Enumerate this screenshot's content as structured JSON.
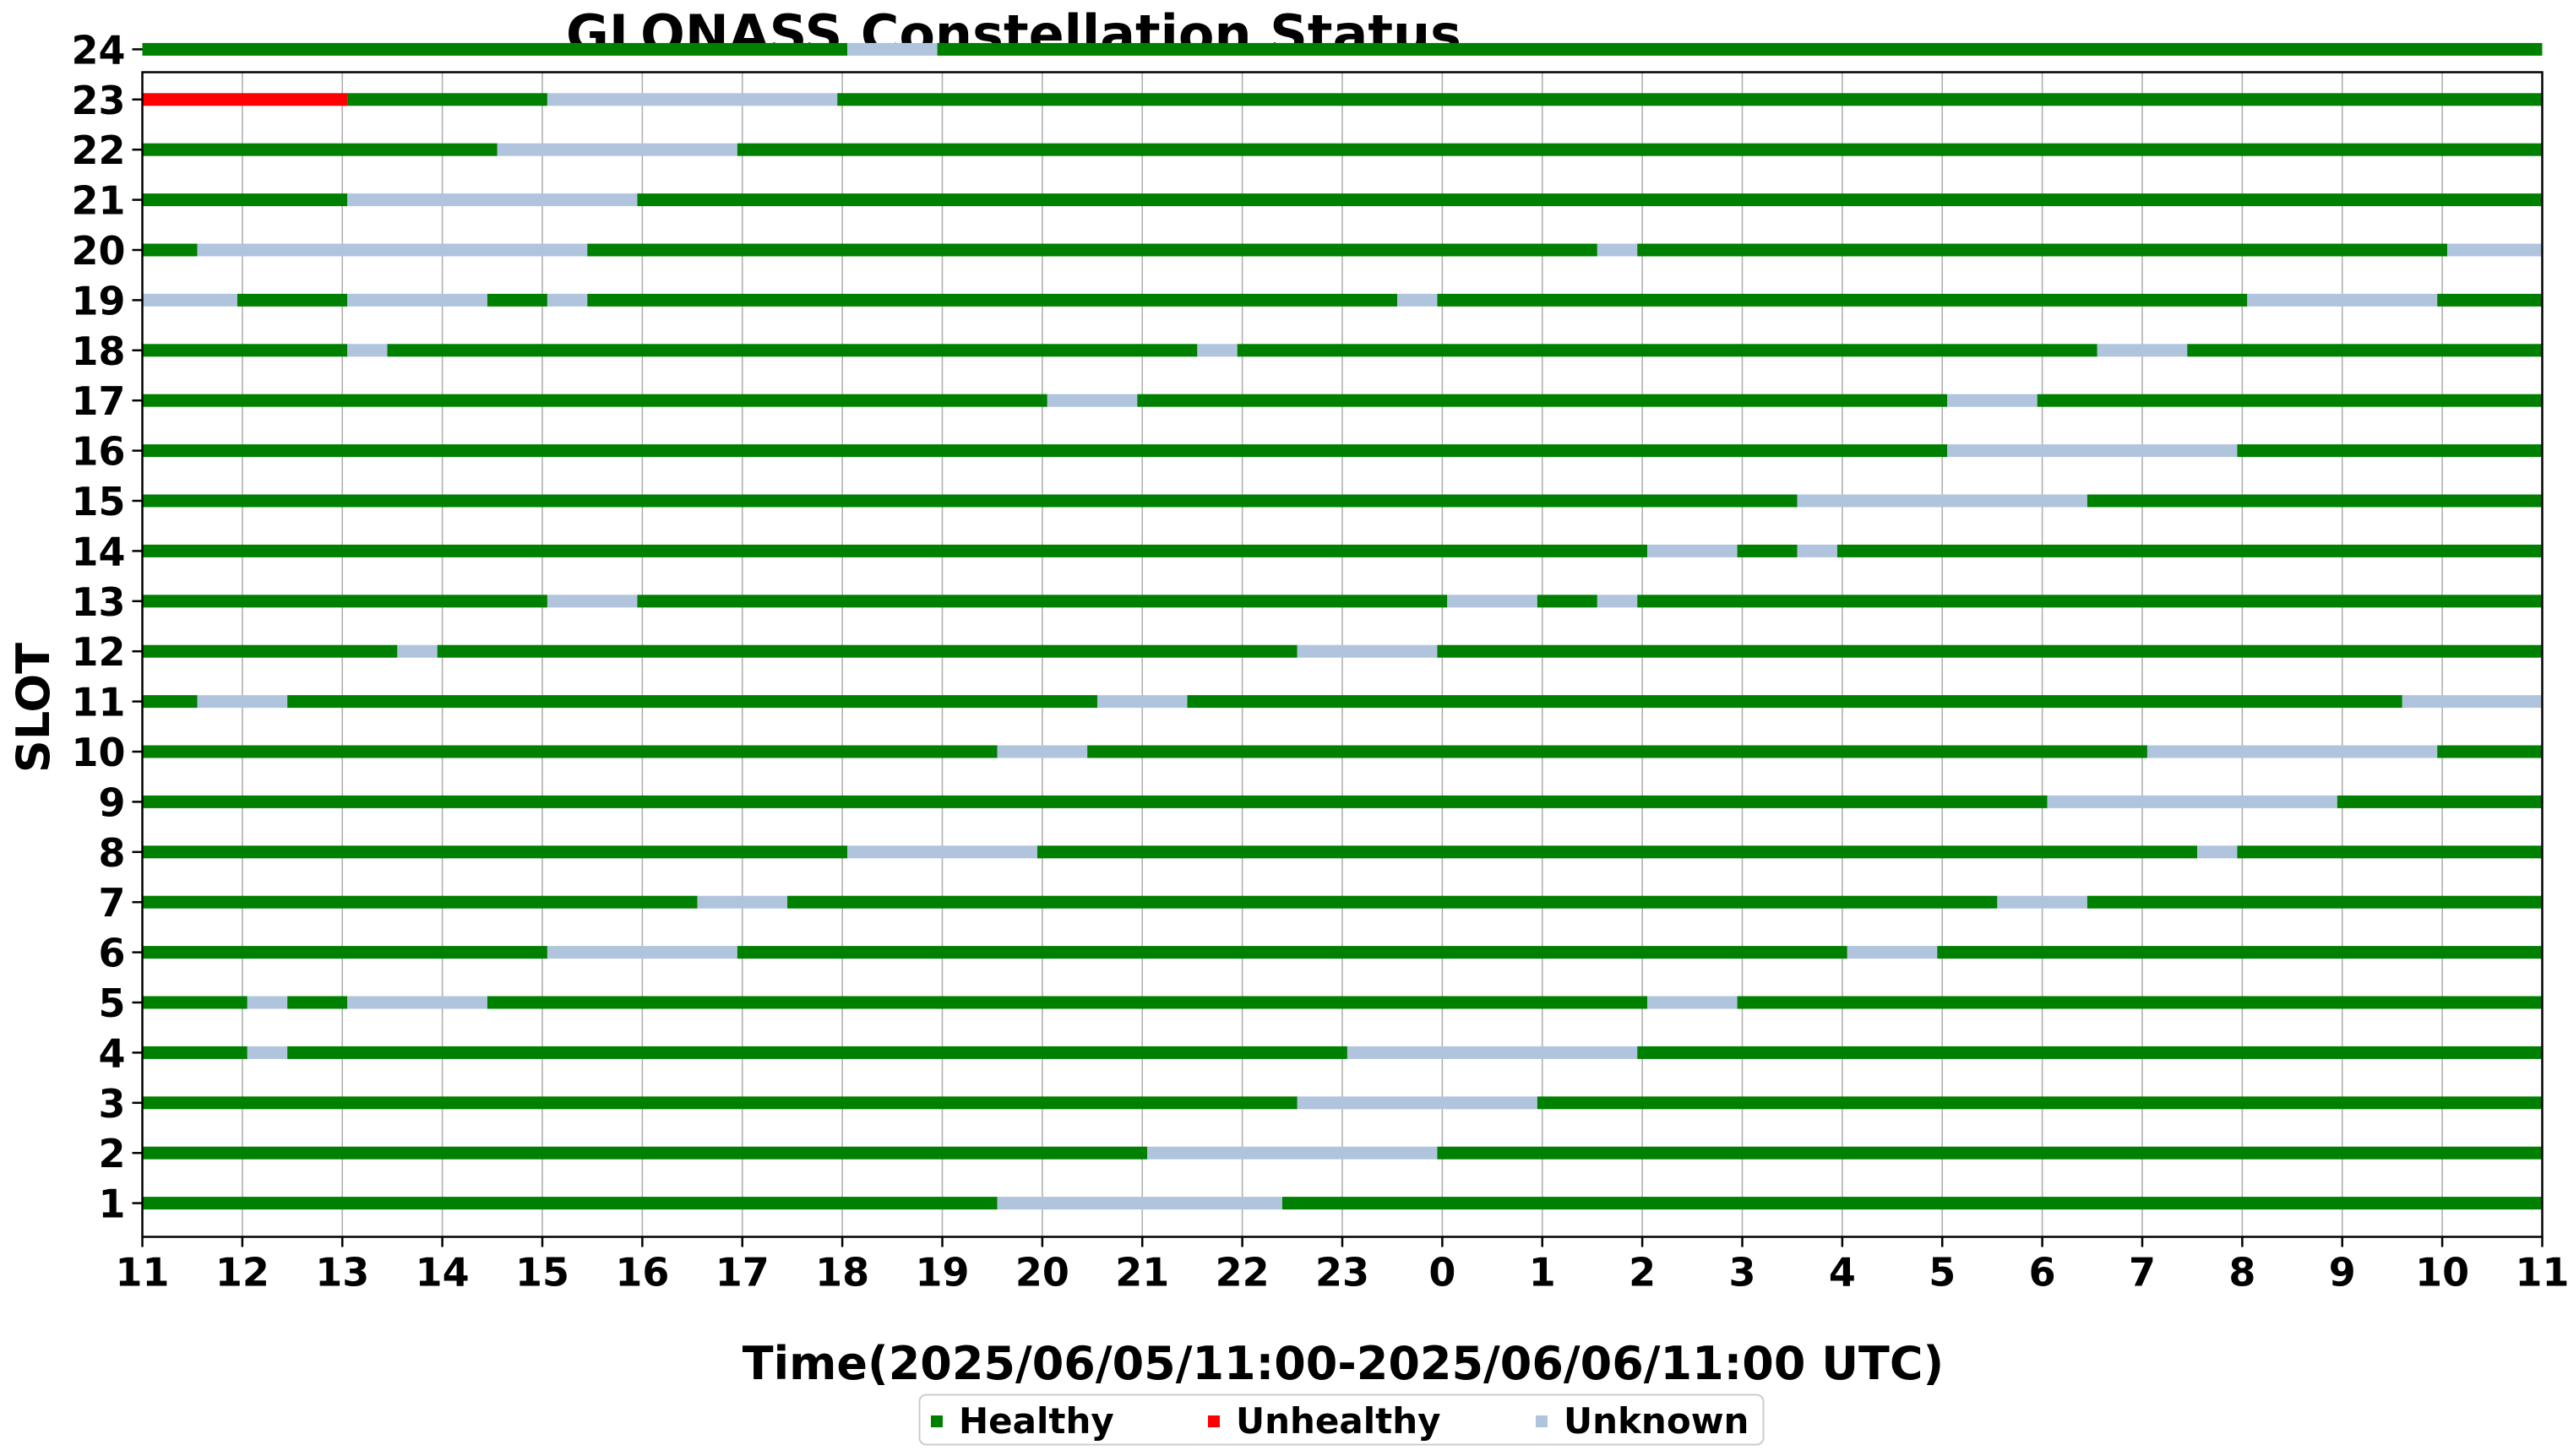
{
  "chart_data": {
    "type": "timeline",
    "title": "GLONASS Constellation Status",
    "xlabel": "Time(2025/06/05/11:00-2025/06/06/11:00 UTC)",
    "ylabel": "SLOT",
    "x_unit": "hours since 2025/06/05 11:00 UTC",
    "xlim": [
      0,
      24
    ],
    "x_ticks": [
      "11",
      "12",
      "13",
      "14",
      "15",
      "16",
      "17",
      "18",
      "19",
      "20",
      "21",
      "22",
      "23",
      "0",
      "1",
      "2",
      "3",
      "4",
      "5",
      "6",
      "7",
      "8",
      "9",
      "10",
      "11"
    ],
    "y_ticks": [
      "1",
      "2",
      "3",
      "4",
      "5",
      "6",
      "7",
      "8",
      "9",
      "10",
      "11",
      "12",
      "13",
      "14",
      "15",
      "16",
      "17",
      "18",
      "19",
      "20",
      "21",
      "22",
      "23",
      "24"
    ],
    "grid": "vertical",
    "legend_position": "bottom-center",
    "legend": [
      {
        "key": "H",
        "label": "Healthy",
        "color": "#008000"
      },
      {
        "key": "X",
        "label": "Unhealthy",
        "color": "#ff0000"
      },
      {
        "key": "U",
        "label": "Unknown",
        "color": "#b0c4de"
      }
    ],
    "series": [
      {
        "slot": "1",
        "segments": [
          [
            0,
            8.55,
            "H"
          ],
          [
            8.55,
            11.4,
            "U"
          ],
          [
            11.4,
            24,
            "H"
          ]
        ]
      },
      {
        "slot": "2",
        "segments": [
          [
            0,
            10.05,
            "H"
          ],
          [
            10.05,
            12.95,
            "U"
          ],
          [
            12.95,
            24,
            "H"
          ]
        ]
      },
      {
        "slot": "3",
        "segments": [
          [
            0,
            11.55,
            "H"
          ],
          [
            11.55,
            13.95,
            "U"
          ],
          [
            13.95,
            24,
            "H"
          ]
        ]
      },
      {
        "slot": "4",
        "segments": [
          [
            0,
            1.05,
            "H"
          ],
          [
            1.05,
            1.45,
            "U"
          ],
          [
            1.45,
            12.05,
            "H"
          ],
          [
            12.05,
            14.95,
            "U"
          ],
          [
            14.95,
            24,
            "H"
          ]
        ]
      },
      {
        "slot": "5",
        "segments": [
          [
            0,
            1.05,
            "H"
          ],
          [
            1.05,
            1.45,
            "U"
          ],
          [
            1.45,
            2.05,
            "H"
          ],
          [
            2.05,
            3.45,
            "U"
          ],
          [
            3.45,
            15.05,
            "H"
          ],
          [
            15.05,
            15.95,
            "U"
          ],
          [
            15.95,
            24,
            "H"
          ]
        ]
      },
      {
        "slot": "6",
        "segments": [
          [
            0,
            4.05,
            "H"
          ],
          [
            4.05,
            5.95,
            "U"
          ],
          [
            5.95,
            17.05,
            "H"
          ],
          [
            17.05,
            17.95,
            "U"
          ],
          [
            17.95,
            24,
            "H"
          ]
        ]
      },
      {
        "slot": "7",
        "segments": [
          [
            0,
            5.55,
            "H"
          ],
          [
            5.55,
            6.45,
            "U"
          ],
          [
            6.45,
            18.55,
            "H"
          ],
          [
            18.55,
            19.45,
            "U"
          ],
          [
            19.45,
            24,
            "H"
          ]
        ]
      },
      {
        "slot": "8",
        "segments": [
          [
            0,
            7.05,
            "H"
          ],
          [
            7.05,
            8.95,
            "U"
          ],
          [
            8.95,
            20.55,
            "H"
          ],
          [
            20.55,
            20.95,
            "U"
          ],
          [
            20.95,
            24,
            "H"
          ]
        ]
      },
      {
        "slot": "9",
        "segments": [
          [
            0,
            19.05,
            "H"
          ],
          [
            19.05,
            21.95,
            "U"
          ],
          [
            21.95,
            24,
            "H"
          ]
        ]
      },
      {
        "slot": "10",
        "segments": [
          [
            0,
            8.55,
            "H"
          ],
          [
            8.55,
            9.45,
            "U"
          ],
          [
            9.45,
            20.05,
            "H"
          ],
          [
            20.05,
            22.95,
            "U"
          ],
          [
            22.95,
            24,
            "H"
          ]
        ]
      },
      {
        "slot": "11",
        "segments": [
          [
            0,
            0.55,
            "H"
          ],
          [
            0.55,
            1.45,
            "U"
          ],
          [
            1.45,
            9.55,
            "H"
          ],
          [
            9.55,
            10.45,
            "U"
          ],
          [
            10.45,
            22.6,
            "H"
          ],
          [
            22.6,
            24,
            "U"
          ]
        ]
      },
      {
        "slot": "12",
        "segments": [
          [
            0,
            2.55,
            "H"
          ],
          [
            2.55,
            2.95,
            "U"
          ],
          [
            2.95,
            11.55,
            "H"
          ],
          [
            11.55,
            12.95,
            "U"
          ],
          [
            12.95,
            24,
            "H"
          ]
        ]
      },
      {
        "slot": "13",
        "segments": [
          [
            0,
            4.05,
            "H"
          ],
          [
            4.05,
            4.95,
            "U"
          ],
          [
            4.95,
            13.05,
            "H"
          ],
          [
            13.05,
            13.95,
            "U"
          ],
          [
            13.95,
            14.55,
            "H"
          ],
          [
            14.55,
            14.95,
            "U"
          ],
          [
            14.95,
            24,
            "H"
          ]
        ]
      },
      {
        "slot": "14",
        "segments": [
          [
            0,
            15.05,
            "H"
          ],
          [
            15.05,
            15.95,
            "U"
          ],
          [
            15.95,
            16.55,
            "H"
          ],
          [
            16.55,
            16.95,
            "U"
          ],
          [
            16.95,
            24,
            "H"
          ]
        ]
      },
      {
        "slot": "15",
        "segments": [
          [
            0,
            16.55,
            "H"
          ],
          [
            16.55,
            19.45,
            "U"
          ],
          [
            19.45,
            24,
            "H"
          ]
        ]
      },
      {
        "slot": "16",
        "segments": [
          [
            0,
            18.05,
            "H"
          ],
          [
            18.05,
            20.95,
            "U"
          ],
          [
            20.95,
            24,
            "H"
          ]
        ]
      },
      {
        "slot": "17",
        "segments": [
          [
            0,
            9.05,
            "H"
          ],
          [
            9.05,
            9.95,
            "U"
          ],
          [
            9.95,
            18.05,
            "H"
          ],
          [
            18.05,
            18.95,
            "U"
          ],
          [
            18.95,
            24,
            "H"
          ]
        ]
      },
      {
        "slot": "18",
        "segments": [
          [
            0,
            2.05,
            "H"
          ],
          [
            2.05,
            2.45,
            "U"
          ],
          [
            2.45,
            10.55,
            "H"
          ],
          [
            10.55,
            10.95,
            "U"
          ],
          [
            10.95,
            19.55,
            "H"
          ],
          [
            19.55,
            20.45,
            "U"
          ],
          [
            20.45,
            24,
            "H"
          ]
        ]
      },
      {
        "slot": "19",
        "segments": [
          [
            0,
            0.95,
            "U"
          ],
          [
            0.95,
            2.05,
            "H"
          ],
          [
            2.05,
            3.45,
            "U"
          ],
          [
            3.45,
            4.05,
            "H"
          ],
          [
            4.05,
            4.45,
            "U"
          ],
          [
            4.45,
            12.55,
            "H"
          ],
          [
            12.55,
            12.95,
            "U"
          ],
          [
            12.95,
            21.05,
            "H"
          ],
          [
            21.05,
            22.95,
            "U"
          ],
          [
            22.95,
            24,
            "H"
          ]
        ]
      },
      {
        "slot": "20",
        "segments": [
          [
            0,
            0.55,
            "H"
          ],
          [
            0.55,
            4.45,
            "U"
          ],
          [
            4.45,
            14.55,
            "H"
          ],
          [
            14.55,
            14.95,
            "U"
          ],
          [
            14.95,
            23.05,
            "H"
          ],
          [
            23.05,
            24,
            "U"
          ]
        ]
      },
      {
        "slot": "21",
        "segments": [
          [
            0,
            2.05,
            "H"
          ],
          [
            2.05,
            4.95,
            "U"
          ],
          [
            4.95,
            24,
            "H"
          ]
        ]
      },
      {
        "slot": "22",
        "segments": [
          [
            0,
            3.55,
            "H"
          ],
          [
            3.55,
            5.95,
            "U"
          ],
          [
            5.95,
            24,
            "H"
          ]
        ]
      },
      {
        "slot": "23",
        "segments": [
          [
            0,
            2.05,
            "X"
          ],
          [
            2.05,
            4.05,
            "H"
          ],
          [
            4.05,
            6.95,
            "U"
          ],
          [
            6.95,
            24,
            "H"
          ]
        ]
      },
      {
        "slot": "24",
        "segments": [
          [
            0,
            7.05,
            "H"
          ],
          [
            7.05,
            7.95,
            "U"
          ],
          [
            7.95,
            24,
            "H"
          ]
        ]
      }
    ]
  }
}
